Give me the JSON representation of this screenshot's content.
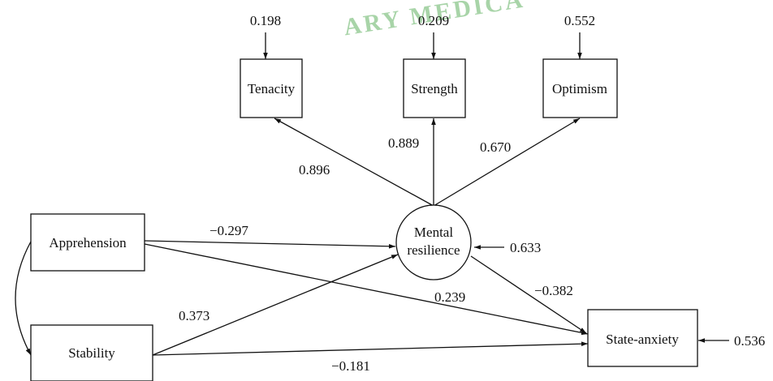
{
  "watermark": {
    "text": "ARY MEDICA",
    "color": "#a8d4a8"
  },
  "nodes": {
    "tenacity": "Tenacity",
    "strength": "Strength",
    "optimism": "Optimism",
    "mental_resilience_line1": "Mental",
    "mental_resilience_line2": "resilience",
    "apprehension": "Apprehension",
    "stability": "Stability",
    "state_anxiety": "State-anxiety"
  },
  "error_terms": {
    "tenacity": "0.198",
    "strength": "0.209",
    "optimism": "0.552",
    "mental_resilience": "0.633",
    "state_anxiety": "0.536"
  },
  "paths": {
    "mr_to_tenacity": "0.896",
    "mr_to_strength": "0.889",
    "mr_to_optimism": "0.670",
    "apprehension_to_mr": "−0.297",
    "apprehension_to_state_anxiety": "0.239",
    "stability_to_mr": "0.373",
    "stability_to_state_anxiety": "−0.181",
    "mr_to_state_anxiety": "−0.382"
  }
}
